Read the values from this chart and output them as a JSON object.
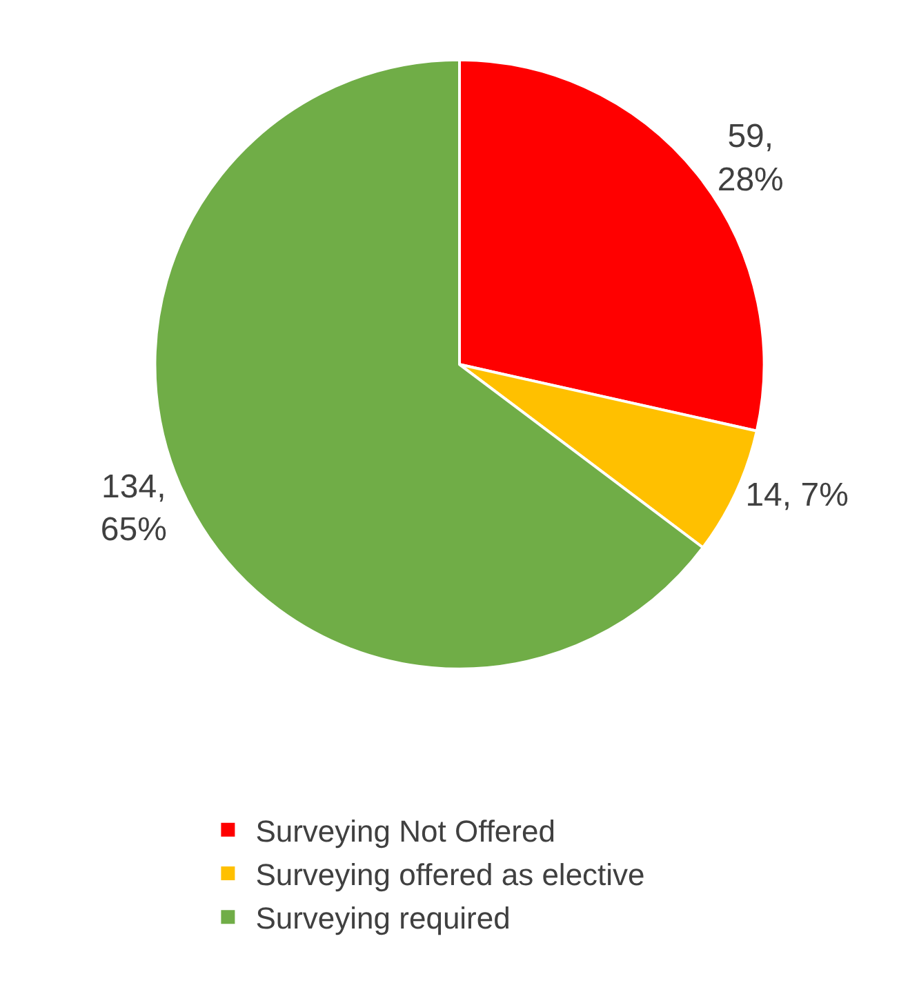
{
  "chart_data": {
    "type": "pie",
    "categories": [
      "Surveying Not Offered",
      "Surveying offered as elective",
      "Surveying required"
    ],
    "values": [
      59,
      14,
      134
    ],
    "colors": [
      "#ff0000",
      "#ffc000",
      "#70ad47"
    ],
    "value_labels": [
      "59,\n28%",
      "14, 7%",
      "134,\n65%"
    ],
    "legend": "bottom"
  }
}
